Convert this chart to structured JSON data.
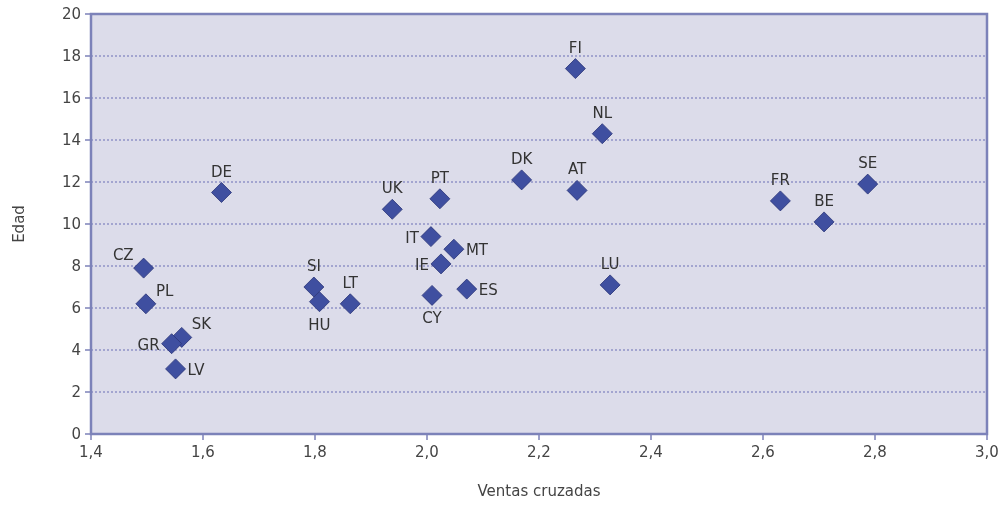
{
  "chart_data": {
    "type": "scatter",
    "xlabel": "Ventas cruzadas",
    "ylabel": "Edad",
    "xlim": [
      1.4,
      3.0
    ],
    "ylim": [
      0,
      20
    ],
    "xticks": [
      {
        "value": 1.4,
        "label": "1,4"
      },
      {
        "value": 1.6,
        "label": "1,6"
      },
      {
        "value": 1.8,
        "label": "1,8"
      },
      {
        "value": 2.0,
        "label": "2,0"
      },
      {
        "value": 2.2,
        "label": "2,2"
      },
      {
        "value": 2.4,
        "label": "2,4"
      },
      {
        "value": 2.6,
        "label": "2,6"
      },
      {
        "value": 2.8,
        "label": "2,8"
      },
      {
        "value": 3.0,
        "label": "3,0"
      }
    ],
    "yticks": [
      0,
      2,
      4,
      6,
      8,
      10,
      12,
      14,
      16,
      18,
      20
    ],
    "grid": "y",
    "marker": "diamond",
    "series": [
      {
        "name": "FI",
        "color": "#3f4fa0",
        "x": [
          2.265
        ],
        "values": [
          17.4
        ]
      },
      {
        "name": "NL",
        "color": "#3f4fa0",
        "x": [
          2.313
        ],
        "values": [
          14.3
        ]
      },
      {
        "name": "DK",
        "color": "#3f4fa0",
        "x": [
          2.169
        ],
        "values": [
          12.1
        ]
      },
      {
        "name": "AT",
        "color": "#3f4fa0",
        "x": [
          2.268
        ],
        "values": [
          11.6
        ]
      },
      {
        "name": "SE",
        "color": "#3f4fa0",
        "x": [
          2.787
        ],
        "values": [
          11.9
        ]
      },
      {
        "name": "FR",
        "color": "#3f4fa0",
        "x": [
          2.631
        ],
        "values": [
          11.1
        ]
      },
      {
        "name": "BE",
        "color": "#3f4fa0",
        "x": [
          2.709
        ],
        "values": [
          10.1
        ]
      },
      {
        "name": "LU",
        "color": "#3f4fa0",
        "x": [
          2.327
        ],
        "values": [
          7.1
        ]
      },
      {
        "name": "DE",
        "color": "#3f4fa0",
        "x": [
          1.633
        ],
        "values": [
          11.5
        ]
      },
      {
        "name": "UK",
        "color": "#3f4fa0",
        "x": [
          1.938
        ],
        "values": [
          10.7
        ]
      },
      {
        "name": "PT",
        "color": "#3f4fa0",
        "x": [
          2.023
        ],
        "values": [
          11.2
        ]
      },
      {
        "name": "IT",
        "color": "#3f4fa0",
        "x": [
          2.007
        ],
        "values": [
          9.4
        ]
      },
      {
        "name": "MT",
        "color": "#3f4fa0",
        "x": [
          2.048
        ],
        "values": [
          8.8
        ]
      },
      {
        "name": "IE",
        "color": "#3f4fa0",
        "x": [
          2.025
        ],
        "values": [
          8.1
        ]
      },
      {
        "name": "ES",
        "color": "#3f4fa0",
        "x": [
          2.071
        ],
        "values": [
          6.9
        ]
      },
      {
        "name": "CY",
        "color": "#3f4fa0",
        "x": [
          2.009
        ],
        "values": [
          6.6
        ]
      },
      {
        "name": "SI",
        "color": "#3f4fa0",
        "x": [
          1.798
        ],
        "values": [
          7.0
        ]
      },
      {
        "name": "HU",
        "color": "#3f4fa0",
        "x": [
          1.808
        ],
        "values": [
          6.3
        ]
      },
      {
        "name": "LT",
        "color": "#3f4fa0",
        "x": [
          1.863
        ],
        "values": [
          6.2
        ]
      },
      {
        "name": "CZ",
        "color": "#3f4fa0",
        "x": [
          1.494
        ],
        "values": [
          7.9
        ]
      },
      {
        "name": "PL",
        "color": "#3f4fa0",
        "x": [
          1.498
        ],
        "values": [
          6.2
        ]
      },
      {
        "name": "SK",
        "color": "#3f4fa0",
        "x": [
          1.562
        ],
        "values": [
          4.6
        ]
      },
      {
        "name": "GR",
        "color": "#3f4fa0",
        "x": [
          1.544
        ],
        "values": [
          4.3
        ]
      },
      {
        "name": "LV",
        "color": "#3f4fa0",
        "x": [
          1.551
        ],
        "values": [
          3.1
        ]
      }
    ]
  }
}
